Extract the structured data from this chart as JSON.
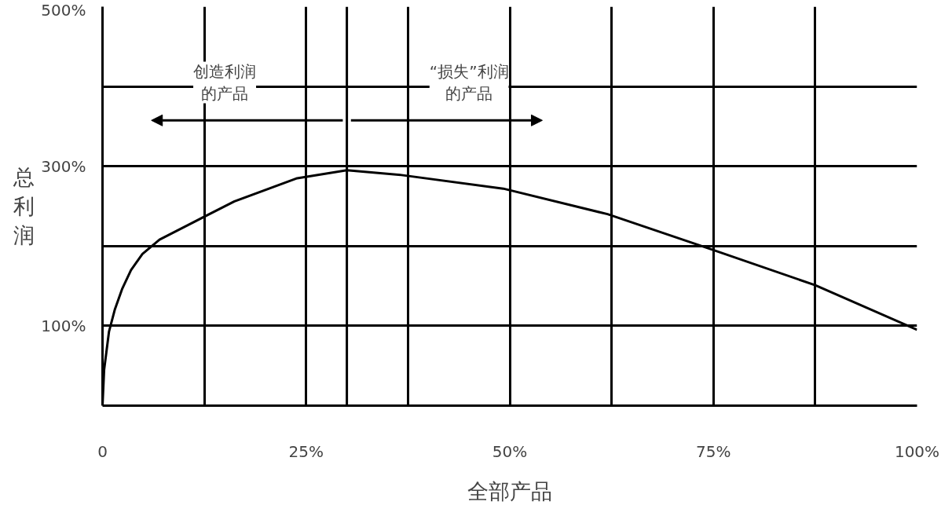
{
  "chart_data": {
    "type": "line",
    "xlabel": "全部产品",
    "ylabel": "总利润",
    "x": [
      0,
      0.2,
      0.8,
      1.5,
      2.4,
      3.5,
      4.9,
      7,
      11,
      16.2,
      23.9,
      30,
      36.7,
      49.2,
      62,
      75,
      87.5,
      100
    ],
    "series": [
      {
        "color": "#000000",
        "values": [
          0,
          45,
          93,
          120,
          146,
          170,
          190,
          208,
          229,
          256,
          285,
          295,
          289,
          272,
          240,
          195,
          151,
          95
        ]
      }
    ],
    "xlim": [
      0,
      100
    ],
    "ylim": [
      0,
      500
    ],
    "xticks": [
      0,
      {
        "value": 12.5,
        "label": null
      },
      {
        "value": 25,
        "label": "25%"
      },
      {
        "value": 37.5,
        "label": null
      },
      {
        "value": 50,
        "label": "50%"
      },
      {
        "value": 62.5,
        "label": null
      },
      {
        "value": 75,
        "label": "75%"
      },
      {
        "value": 87.5,
        "label": null
      },
      {
        "value": 100,
        "label": "100%"
      }
    ],
    "yticks": [
      {
        "value": 100,
        "label": "100%"
      },
      {
        "value": 200,
        "label": null
      },
      {
        "value": 300,
        "label": "300%"
      },
      {
        "value": 400,
        "label": null
      },
      {
        "value": 500,
        "label": "500%"
      }
    ],
    "ref_lines": [
      {
        "axis": "x",
        "value": 30
      }
    ],
    "annotations": [
      "创造利润的产品",
      "“损失”利润的产品"
    ],
    "grid": true,
    "marker": "none",
    "line_style": "solid"
  }
}
